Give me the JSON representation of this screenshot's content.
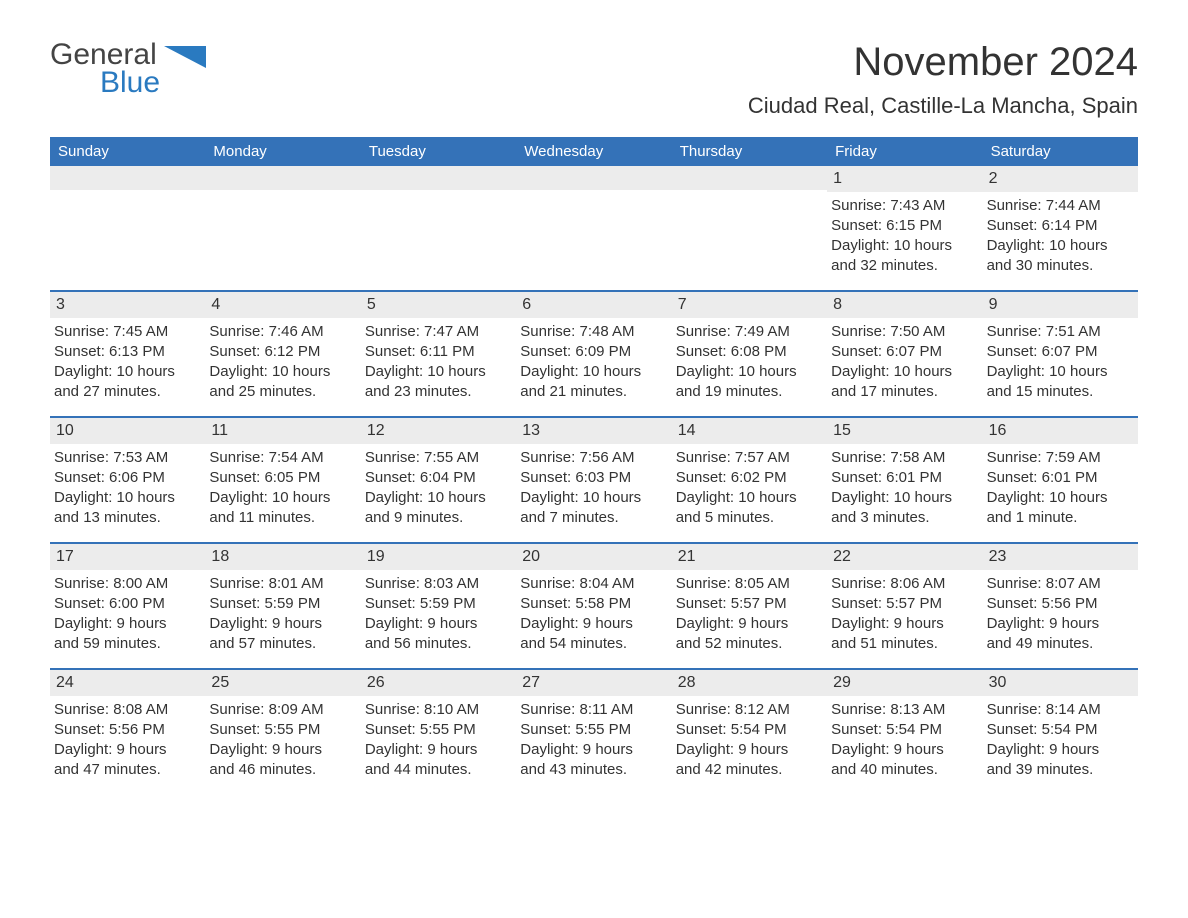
{
  "logo": {
    "text_general": "General",
    "text_blue": "Blue",
    "icon_color": "#2a7ac0"
  },
  "title": "November 2024",
  "location": "Ciudad Real, Castille-La Mancha, Spain",
  "colors": {
    "header_bg": "#3472b8",
    "header_text": "#ffffff",
    "row_border": "#3472b8",
    "daynum_bg": "#ececec",
    "body_text": "#333333",
    "page_bg": "#ffffff"
  },
  "day_headers": [
    "Sunday",
    "Monday",
    "Tuesday",
    "Wednesday",
    "Thursday",
    "Friday",
    "Saturday"
  ],
  "weeks": [
    [
      null,
      null,
      null,
      null,
      null,
      {
        "n": "1",
        "sunrise": "Sunrise: 7:43 AM",
        "sunset": "Sunset: 6:15 PM",
        "daylight1": "Daylight: 10 hours",
        "daylight2": "and 32 minutes."
      },
      {
        "n": "2",
        "sunrise": "Sunrise: 7:44 AM",
        "sunset": "Sunset: 6:14 PM",
        "daylight1": "Daylight: 10 hours",
        "daylight2": "and 30 minutes."
      }
    ],
    [
      {
        "n": "3",
        "sunrise": "Sunrise: 7:45 AM",
        "sunset": "Sunset: 6:13 PM",
        "daylight1": "Daylight: 10 hours",
        "daylight2": "and 27 minutes."
      },
      {
        "n": "4",
        "sunrise": "Sunrise: 7:46 AM",
        "sunset": "Sunset: 6:12 PM",
        "daylight1": "Daylight: 10 hours",
        "daylight2": "and 25 minutes."
      },
      {
        "n": "5",
        "sunrise": "Sunrise: 7:47 AM",
        "sunset": "Sunset: 6:11 PM",
        "daylight1": "Daylight: 10 hours",
        "daylight2": "and 23 minutes."
      },
      {
        "n": "6",
        "sunrise": "Sunrise: 7:48 AM",
        "sunset": "Sunset: 6:09 PM",
        "daylight1": "Daylight: 10 hours",
        "daylight2": "and 21 minutes."
      },
      {
        "n": "7",
        "sunrise": "Sunrise: 7:49 AM",
        "sunset": "Sunset: 6:08 PM",
        "daylight1": "Daylight: 10 hours",
        "daylight2": "and 19 minutes."
      },
      {
        "n": "8",
        "sunrise": "Sunrise: 7:50 AM",
        "sunset": "Sunset: 6:07 PM",
        "daylight1": "Daylight: 10 hours",
        "daylight2": "and 17 minutes."
      },
      {
        "n": "9",
        "sunrise": "Sunrise: 7:51 AM",
        "sunset": "Sunset: 6:07 PM",
        "daylight1": "Daylight: 10 hours",
        "daylight2": "and 15 minutes."
      }
    ],
    [
      {
        "n": "10",
        "sunrise": "Sunrise: 7:53 AM",
        "sunset": "Sunset: 6:06 PM",
        "daylight1": "Daylight: 10 hours",
        "daylight2": "and 13 minutes."
      },
      {
        "n": "11",
        "sunrise": "Sunrise: 7:54 AM",
        "sunset": "Sunset: 6:05 PM",
        "daylight1": "Daylight: 10 hours",
        "daylight2": "and 11 minutes."
      },
      {
        "n": "12",
        "sunrise": "Sunrise: 7:55 AM",
        "sunset": "Sunset: 6:04 PM",
        "daylight1": "Daylight: 10 hours",
        "daylight2": "and 9 minutes."
      },
      {
        "n": "13",
        "sunrise": "Sunrise: 7:56 AM",
        "sunset": "Sunset: 6:03 PM",
        "daylight1": "Daylight: 10 hours",
        "daylight2": "and 7 minutes."
      },
      {
        "n": "14",
        "sunrise": "Sunrise: 7:57 AM",
        "sunset": "Sunset: 6:02 PM",
        "daylight1": "Daylight: 10 hours",
        "daylight2": "and 5 minutes."
      },
      {
        "n": "15",
        "sunrise": "Sunrise: 7:58 AM",
        "sunset": "Sunset: 6:01 PM",
        "daylight1": "Daylight: 10 hours",
        "daylight2": "and 3 minutes."
      },
      {
        "n": "16",
        "sunrise": "Sunrise: 7:59 AM",
        "sunset": "Sunset: 6:01 PM",
        "daylight1": "Daylight: 10 hours",
        "daylight2": "and 1 minute."
      }
    ],
    [
      {
        "n": "17",
        "sunrise": "Sunrise: 8:00 AM",
        "sunset": "Sunset: 6:00 PM",
        "daylight1": "Daylight: 9 hours",
        "daylight2": "and 59 minutes."
      },
      {
        "n": "18",
        "sunrise": "Sunrise: 8:01 AM",
        "sunset": "Sunset: 5:59 PM",
        "daylight1": "Daylight: 9 hours",
        "daylight2": "and 57 minutes."
      },
      {
        "n": "19",
        "sunrise": "Sunrise: 8:03 AM",
        "sunset": "Sunset: 5:59 PM",
        "daylight1": "Daylight: 9 hours",
        "daylight2": "and 56 minutes."
      },
      {
        "n": "20",
        "sunrise": "Sunrise: 8:04 AM",
        "sunset": "Sunset: 5:58 PM",
        "daylight1": "Daylight: 9 hours",
        "daylight2": "and 54 minutes."
      },
      {
        "n": "21",
        "sunrise": "Sunrise: 8:05 AM",
        "sunset": "Sunset: 5:57 PM",
        "daylight1": "Daylight: 9 hours",
        "daylight2": "and 52 minutes."
      },
      {
        "n": "22",
        "sunrise": "Sunrise: 8:06 AM",
        "sunset": "Sunset: 5:57 PM",
        "daylight1": "Daylight: 9 hours",
        "daylight2": "and 51 minutes."
      },
      {
        "n": "23",
        "sunrise": "Sunrise: 8:07 AM",
        "sunset": "Sunset: 5:56 PM",
        "daylight1": "Daylight: 9 hours",
        "daylight2": "and 49 minutes."
      }
    ],
    [
      {
        "n": "24",
        "sunrise": "Sunrise: 8:08 AM",
        "sunset": "Sunset: 5:56 PM",
        "daylight1": "Daylight: 9 hours",
        "daylight2": "and 47 minutes."
      },
      {
        "n": "25",
        "sunrise": "Sunrise: 8:09 AM",
        "sunset": "Sunset: 5:55 PM",
        "daylight1": "Daylight: 9 hours",
        "daylight2": "and 46 minutes."
      },
      {
        "n": "26",
        "sunrise": "Sunrise: 8:10 AM",
        "sunset": "Sunset: 5:55 PM",
        "daylight1": "Daylight: 9 hours",
        "daylight2": "and 44 minutes."
      },
      {
        "n": "27",
        "sunrise": "Sunrise: 8:11 AM",
        "sunset": "Sunset: 5:55 PM",
        "daylight1": "Daylight: 9 hours",
        "daylight2": "and 43 minutes."
      },
      {
        "n": "28",
        "sunrise": "Sunrise: 8:12 AM",
        "sunset": "Sunset: 5:54 PM",
        "daylight1": "Daylight: 9 hours",
        "daylight2": "and 42 minutes."
      },
      {
        "n": "29",
        "sunrise": "Sunrise: 8:13 AM",
        "sunset": "Sunset: 5:54 PM",
        "daylight1": "Daylight: 9 hours",
        "daylight2": "and 40 minutes."
      },
      {
        "n": "30",
        "sunrise": "Sunrise: 8:14 AM",
        "sunset": "Sunset: 5:54 PM",
        "daylight1": "Daylight: 9 hours",
        "daylight2": "and 39 minutes."
      }
    ]
  ]
}
